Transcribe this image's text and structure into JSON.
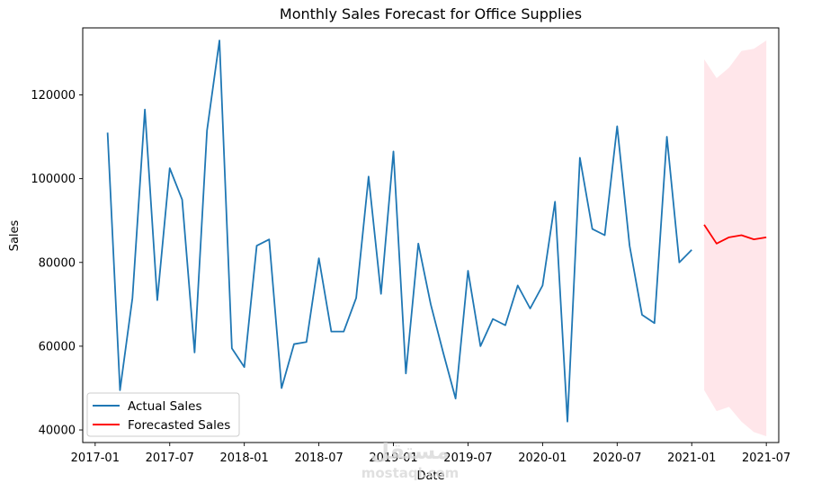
{
  "chart_data": {
    "type": "line",
    "title": "Monthly Sales Forecast for Office Supplies",
    "xlabel": "Date",
    "ylabel": "Sales",
    "x_ticks": [
      "2017-01",
      "2017-07",
      "2018-01",
      "2018-07",
      "2019-01",
      "2019-07",
      "2020-01",
      "2020-07",
      "2021-01",
      "2021-07"
    ],
    "y_ticks": [
      40000,
      60000,
      80000,
      100000,
      120000
    ],
    "xlim": [
      "2016-12",
      "2021-08"
    ],
    "ylim": [
      37000,
      136000
    ],
    "grid": false,
    "legend_position": "lower-left",
    "series": [
      {
        "name": "Actual Sales",
        "color": "#1f77b4",
        "x": [
          "2017-02",
          "2017-03",
          "2017-04",
          "2017-05",
          "2017-06",
          "2017-07",
          "2017-08",
          "2017-09",
          "2017-10",
          "2017-11",
          "2017-12",
          "2018-01",
          "2018-02",
          "2018-03",
          "2018-04",
          "2018-05",
          "2018-06",
          "2018-07",
          "2018-08",
          "2018-09",
          "2018-10",
          "2018-11",
          "2018-12",
          "2019-01",
          "2019-02",
          "2019-03",
          "2019-04",
          "2019-05",
          "2019-06",
          "2019-07",
          "2019-08",
          "2019-09",
          "2019-10",
          "2019-11",
          "2019-12",
          "2020-01",
          "2020-02",
          "2020-03",
          "2020-04",
          "2020-05",
          "2020-06",
          "2020-07",
          "2020-08",
          "2020-09",
          "2020-10",
          "2020-11",
          "2020-12",
          "2021-01"
        ],
        "values": [
          111000,
          49500,
          71500,
          116500,
          71000,
          102500,
          95000,
          58500,
          111500,
          133000,
          59500,
          55000,
          84000,
          85500,
          50000,
          60500,
          61000,
          81000,
          63500,
          63500,
          71500,
          100500,
          72500,
          106500,
          53500,
          84500,
          70000,
          58500,
          47500,
          78000,
          60000,
          66500,
          65000,
          74500,
          69000,
          74500,
          94500,
          42000,
          105000,
          88000,
          86500,
          112500,
          84000,
          67500,
          65500,
          110000,
          80000,
          83000
        ]
      },
      {
        "name": "Forecasted Sales",
        "color": "#ff0000",
        "x": [
          "2021-02",
          "2021-03",
          "2021-04",
          "2021-05",
          "2021-06",
          "2021-07"
        ],
        "values": [
          89000,
          84500,
          86000,
          86500,
          85500,
          86000
        ],
        "ci_lower": [
          49500,
          44500,
          45500,
          42000,
          39500,
          38500
        ],
        "ci_upper": [
          128500,
          124000,
          126500,
          130500,
          131000,
          133000
        ],
        "ci_color": "#ffc0cb"
      }
    ]
  },
  "watermark": {
    "logo_text": "مستقل",
    "text": "mostaql.com"
  }
}
